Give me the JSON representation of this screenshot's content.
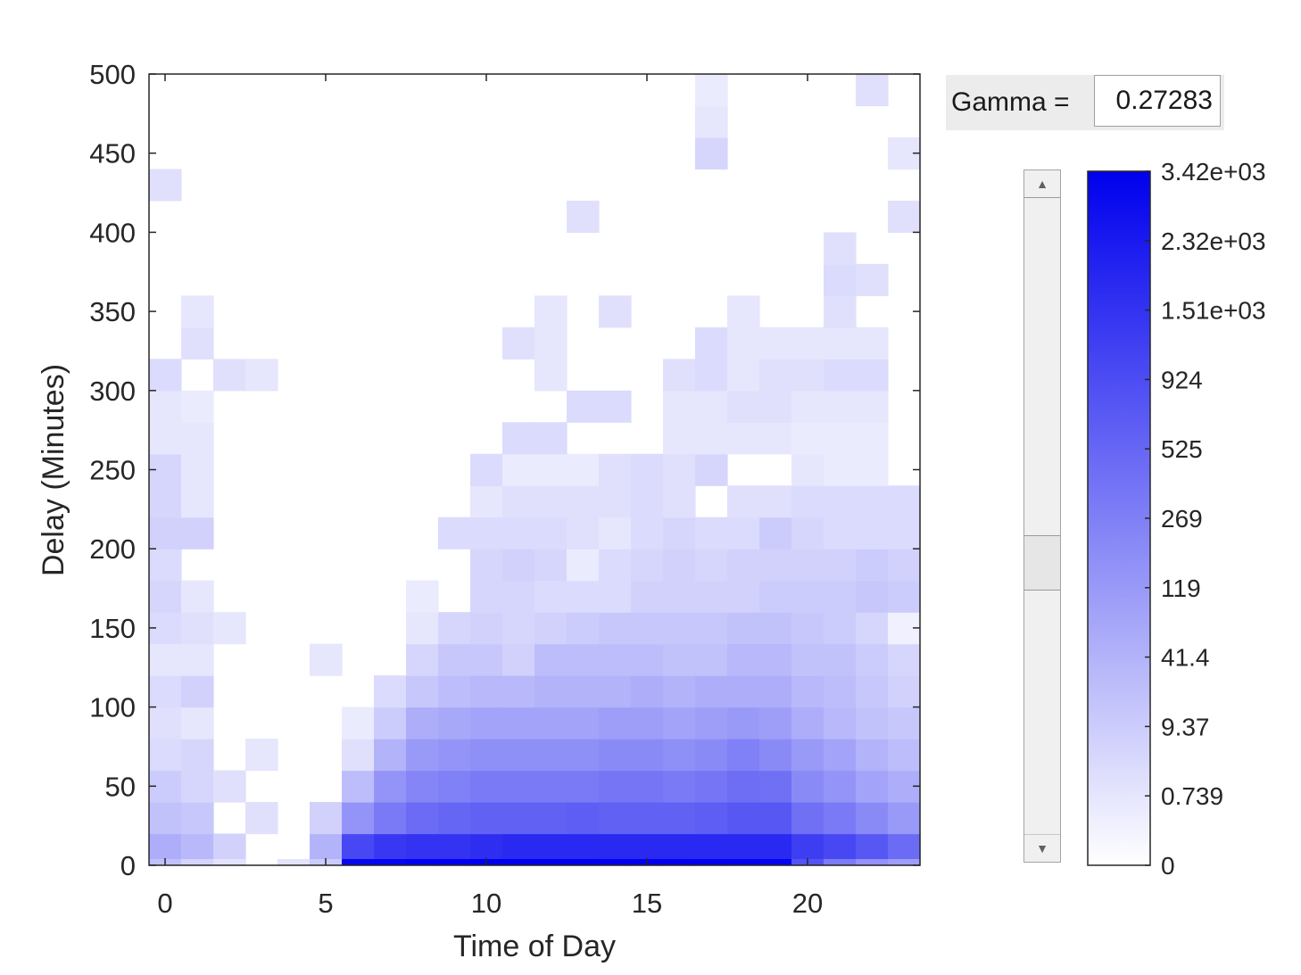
{
  "gamma": {
    "label": "Gamma =",
    "value": "0.27283"
  },
  "scrollbar": {
    "position": 0.58
  },
  "colorbar": {
    "tick_labels": [
      "0",
      "0.739",
      "9.37",
      "41.4",
      "119",
      "269",
      "525",
      "924",
      "1.51e+03",
      "2.32e+03",
      "3.42e+03"
    ],
    "gamma": 0.27283,
    "max": 3420,
    "low_color": "#ffffff",
    "high_color": "#0000ee"
  },
  "chart_data": {
    "type": "heatmap",
    "xlabel": "Time of Day",
    "ylabel": "Delay (Minutes)",
    "xlim": [
      -0.5,
      23.5
    ],
    "ylim": [
      0,
      500
    ],
    "x_ticks": [
      "0",
      "5",
      "10",
      "15",
      "20"
    ],
    "x_tick_values": [
      0,
      5,
      10,
      15,
      20
    ],
    "y_ticks": [
      "0",
      "50",
      "100",
      "150",
      "200",
      "250",
      "300",
      "350",
      "400",
      "450",
      "500"
    ],
    "y_tick_values": [
      0,
      50,
      100,
      150,
      200,
      250,
      300,
      350,
      400,
      450,
      500
    ],
    "x_bin_centers": [
      0,
      1,
      2,
      3,
      4,
      5,
      6,
      7,
      8,
      9,
      10,
      11,
      12,
      13,
      14,
      15,
      16,
      17,
      18,
      19,
      20,
      21,
      22,
      23
    ],
    "y_bin_edges": [
      0,
      20,
      40,
      60,
      80,
      100,
      120,
      140,
      160,
      180,
      200,
      220,
      240,
      260,
      280,
      300,
      320,
      340,
      360,
      380,
      400,
      420,
      440,
      460,
      480,
      500
    ],
    "bottom_row_values": [
      20,
      5,
      1,
      0,
      1,
      10,
      3100,
      3200,
      3300,
      3350,
      3400,
      3420,
      3400,
      3400,
      3380,
      3360,
      3350,
      3300,
      3300,
      3250,
      800,
      300,
      150,
      100
    ],
    "level_rows": [
      [
        0.32,
        0.28,
        0.18,
        0.0,
        0.0,
        0.3,
        0.72,
        0.78,
        0.8,
        0.8,
        0.82,
        0.84,
        0.84,
        0.84,
        0.84,
        0.84,
        0.84,
        0.84,
        0.84,
        0.84,
        0.76,
        0.72,
        0.66,
        0.58
      ],
      [
        0.24,
        0.22,
        0.0,
        0.12,
        0.0,
        0.18,
        0.42,
        0.52,
        0.58,
        0.6,
        0.62,
        0.62,
        0.62,
        0.63,
        0.62,
        0.62,
        0.62,
        0.63,
        0.66,
        0.66,
        0.56,
        0.52,
        0.46,
        0.4
      ],
      [
        0.2,
        0.16,
        0.12,
        0.0,
        0.0,
        0.0,
        0.26,
        0.42,
        0.48,
        0.5,
        0.52,
        0.52,
        0.52,
        0.52,
        0.54,
        0.54,
        0.52,
        0.54,
        0.57,
        0.56,
        0.46,
        0.42,
        0.36,
        0.32
      ],
      [
        0.14,
        0.16,
        0.0,
        0.1,
        0.0,
        0.0,
        0.12,
        0.3,
        0.4,
        0.42,
        0.44,
        0.44,
        0.44,
        0.44,
        0.46,
        0.46,
        0.44,
        0.46,
        0.5,
        0.46,
        0.4,
        0.36,
        0.3,
        0.26
      ],
      [
        0.12,
        0.1,
        0.0,
        0.0,
        0.0,
        0.0,
        0.08,
        0.2,
        0.32,
        0.34,
        0.36,
        0.36,
        0.36,
        0.36,
        0.38,
        0.38,
        0.36,
        0.38,
        0.4,
        0.38,
        0.32,
        0.28,
        0.24,
        0.22
      ],
      [
        0.14,
        0.18,
        0.0,
        0.0,
        0.0,
        0.0,
        0.0,
        0.14,
        0.22,
        0.26,
        0.28,
        0.28,
        0.3,
        0.3,
        0.3,
        0.32,
        0.3,
        0.32,
        0.32,
        0.32,
        0.28,
        0.26,
        0.22,
        0.18
      ],
      [
        0.1,
        0.1,
        0.0,
        0.0,
        0.0,
        0.1,
        0.0,
        0.0,
        0.16,
        0.22,
        0.22,
        0.18,
        0.26,
        0.26,
        0.26,
        0.26,
        0.24,
        0.24,
        0.28,
        0.28,
        0.24,
        0.24,
        0.2,
        0.16
      ],
      [
        0.14,
        0.12,
        0.1,
        0.0,
        0.0,
        0.0,
        0.0,
        0.0,
        0.1,
        0.16,
        0.18,
        0.16,
        0.18,
        0.2,
        0.22,
        0.22,
        0.22,
        0.22,
        0.24,
        0.24,
        0.22,
        0.2,
        0.16,
        0.06
      ],
      [
        0.16,
        0.1,
        0.0,
        0.0,
        0.0,
        0.0,
        0.0,
        0.0,
        0.08,
        0.0,
        0.16,
        0.16,
        0.14,
        0.14,
        0.14,
        0.18,
        0.18,
        0.18,
        0.18,
        0.2,
        0.2,
        0.2,
        0.22,
        0.2
      ],
      [
        0.14,
        0.0,
        0.0,
        0.0,
        0.0,
        0.0,
        0.0,
        0.0,
        0.0,
        0.0,
        0.16,
        0.18,
        0.16,
        0.08,
        0.14,
        0.16,
        0.18,
        0.16,
        0.18,
        0.18,
        0.18,
        0.18,
        0.2,
        0.18
      ],
      [
        0.18,
        0.18,
        0.0,
        0.0,
        0.0,
        0.0,
        0.0,
        0.0,
        0.0,
        0.14,
        0.14,
        0.14,
        0.14,
        0.12,
        0.1,
        0.14,
        0.16,
        0.14,
        0.14,
        0.2,
        0.16,
        0.14,
        0.14,
        0.14
      ],
      [
        0.16,
        0.1,
        0.0,
        0.0,
        0.0,
        0.0,
        0.0,
        0.0,
        0.0,
        0.0,
        0.1,
        0.12,
        0.12,
        0.12,
        0.12,
        0.14,
        0.12,
        0.0,
        0.12,
        0.12,
        0.14,
        0.14,
        0.14,
        0.14
      ],
      [
        0.16,
        0.1,
        0.0,
        0.0,
        0.0,
        0.0,
        0.0,
        0.0,
        0.0,
        0.0,
        0.14,
        0.08,
        0.08,
        0.08,
        0.12,
        0.14,
        0.12,
        0.16,
        0.0,
        0.0,
        0.1,
        0.08,
        0.08,
        0.0
      ],
      [
        0.1,
        0.1,
        0.0,
        0.0,
        0.0,
        0.0,
        0.0,
        0.0,
        0.0,
        0.0,
        0.0,
        0.14,
        0.14,
        0.0,
        0.0,
        0.0,
        0.1,
        0.1,
        0.1,
        0.1,
        0.08,
        0.08,
        0.08,
        0.0
      ],
      [
        0.1,
        0.08,
        0.0,
        0.0,
        0.0,
        0.0,
        0.0,
        0.0,
        0.0,
        0.0,
        0.0,
        0.0,
        0.0,
        0.14,
        0.14,
        0.0,
        0.1,
        0.1,
        0.12,
        0.12,
        0.1,
        0.1,
        0.1,
        0.0
      ],
      [
        0.14,
        0.0,
        0.12,
        0.1,
        0.0,
        0.0,
        0.0,
        0.0,
        0.0,
        0.0,
        0.0,
        0.0,
        0.1,
        0.0,
        0.0,
        0.0,
        0.12,
        0.14,
        0.1,
        0.12,
        0.12,
        0.14,
        0.14,
        0.0
      ],
      [
        0.0,
        0.12,
        0.0,
        0.0,
        0.0,
        0.0,
        0.0,
        0.0,
        0.0,
        0.0,
        0.0,
        0.12,
        0.1,
        0.0,
        0.0,
        0.0,
        0.0,
        0.14,
        0.1,
        0.1,
        0.1,
        0.1,
        0.1,
        0.0
      ],
      [
        0.0,
        0.1,
        0.0,
        0.0,
        0.0,
        0.0,
        0.0,
        0.0,
        0.0,
        0.0,
        0.0,
        0.0,
        0.1,
        0.0,
        0.12,
        0.0,
        0.0,
        0.0,
        0.1,
        0.0,
        0.0,
        0.12,
        0.0,
        0.0
      ],
      [
        0.0,
        0.0,
        0.0,
        0.0,
        0.0,
        0.0,
        0.0,
        0.0,
        0.0,
        0.0,
        0.0,
        0.0,
        0.0,
        0.0,
        0.0,
        0.0,
        0.0,
        0.0,
        0.0,
        0.0,
        0.0,
        0.14,
        0.12,
        0.0
      ],
      [
        0.0,
        0.0,
        0.0,
        0.0,
        0.0,
        0.0,
        0.0,
        0.0,
        0.0,
        0.0,
        0.0,
        0.0,
        0.0,
        0.0,
        0.0,
        0.0,
        0.0,
        0.0,
        0.0,
        0.0,
        0.0,
        0.12,
        0.0,
        0.0
      ],
      [
        0.0,
        0.0,
        0.0,
        0.0,
        0.0,
        0.0,
        0.0,
        0.0,
        0.0,
        0.0,
        0.0,
        0.0,
        0.0,
        0.12,
        0.0,
        0.0,
        0.0,
        0.0,
        0.0,
        0.0,
        0.0,
        0.0,
        0.0,
        0.12
      ],
      [
        0.12,
        0.0,
        0.0,
        0.0,
        0.0,
        0.0,
        0.0,
        0.0,
        0.0,
        0.0,
        0.0,
        0.0,
        0.0,
        0.0,
        0.0,
        0.0,
        0.0,
        0.0,
        0.0,
        0.0,
        0.0,
        0.0,
        0.0,
        0.0
      ],
      [
        0.0,
        0.0,
        0.0,
        0.0,
        0.0,
        0.0,
        0.0,
        0.0,
        0.0,
        0.0,
        0.0,
        0.0,
        0.0,
        0.0,
        0.0,
        0.0,
        0.0,
        0.16,
        0.0,
        0.0,
        0.0,
        0.0,
        0.0,
        0.1
      ],
      [
        0.0,
        0.0,
        0.0,
        0.0,
        0.0,
        0.0,
        0.0,
        0.0,
        0.0,
        0.0,
        0.0,
        0.0,
        0.0,
        0.0,
        0.0,
        0.0,
        0.0,
        0.1,
        0.0,
        0.0,
        0.0,
        0.0,
        0.0,
        0.0
      ],
      [
        0.0,
        0.0,
        0.0,
        0.0,
        0.0,
        0.0,
        0.0,
        0.0,
        0.0,
        0.0,
        0.0,
        0.0,
        0.0,
        0.0,
        0.0,
        0.0,
        0.0,
        0.08,
        0.0,
        0.0,
        0.0,
        0.0,
        0.12,
        0.0
      ]
    ]
  }
}
